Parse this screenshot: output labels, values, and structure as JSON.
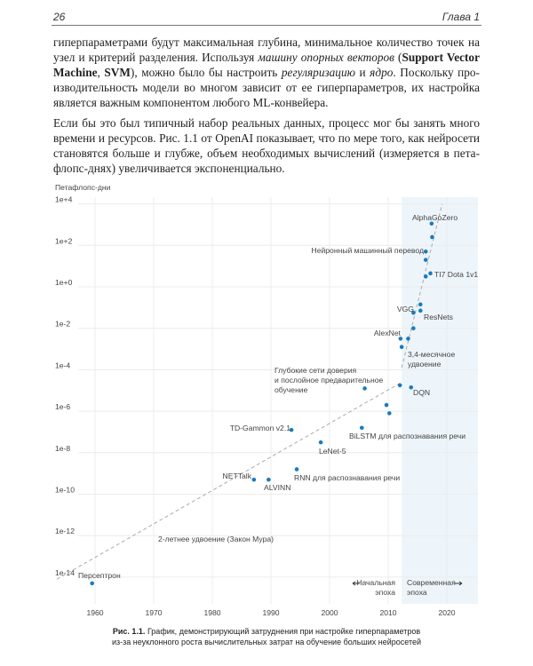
{
  "header": {
    "page_number": "26",
    "chapter": "Глава 1"
  },
  "body": {
    "lines": [
      [
        [
          "гиперпараметрами будут максимальная глубина, минимальное количество точек на",
          ""
        ]
      ],
      [
        [
          "узел и критерий разделения. Используя ",
          ""
        ],
        [
          "машину опорных векторов",
          "i"
        ],
        [
          " (",
          ""
        ],
        [
          "Support Vector",
          "b"
        ]
      ],
      [
        [
          "Machine",
          "b"
        ],
        [
          ", ",
          ""
        ],
        [
          "SVM",
          "b"
        ],
        [
          "), можно было бы настроить ",
          ""
        ],
        [
          "регуляризацию",
          "i"
        ],
        [
          " и ",
          ""
        ],
        [
          "ядро",
          "i"
        ],
        [
          ". Поскольку про-",
          ""
        ]
      ],
      [
        [
          "изводительность модели во многом зависит от ее гиперпараметров, их настройка",
          ""
        ]
      ],
      [
        [
          "является важным компонентом любого ML-конвейера.",
          ""
        ]
      ],
      [
        [
          "Если бы это был типичный набор реальных данных, процесс мог бы занять много",
          ""
        ]
      ],
      [
        [
          "времени и ресурсов. Рис. 1.1 от OpenAI показывает, что по мере того, как нейросети",
          ""
        ]
      ],
      [
        [
          "становятся больше и глубже, объем необходимых вычислений (измеряется в пета-",
          ""
        ]
      ],
      [
        [
          "флопс-днях) увеличивается экспоненциально.",
          ""
        ]
      ]
    ]
  },
  "chart_data": {
    "type": "scatter",
    "ylabel": "Петафлопс-дни",
    "xlabel": "",
    "y_scale": "log10",
    "xlim": [
      1955,
      2026
    ],
    "ylim_exp": [
      -14.8,
      4.3
    ],
    "x_ticks": [
      "1960",
      "1970",
      "1980",
      "1990",
      "2000",
      "2010",
      "2020"
    ],
    "y_ticks": [
      "1e+4",
      "1e+2",
      "1e+0",
      "1e-2",
      "1e-4",
      "1e-6",
      "1e-8",
      "1e-10",
      "1e-12",
      "1e-14"
    ],
    "grid": true,
    "point_color": "#1a7bbf",
    "shade_color": "#eef5fa",
    "modern_era_start": 2012.3,
    "points": [
      {
        "year": 1959.5,
        "log10": -14.3,
        "label": "Персептрон"
      },
      {
        "year": 1987.1,
        "log10": -9.3,
        "label": "NETTalk"
      },
      {
        "year": 1989.6,
        "log10": -9.3,
        "label": "ALVINN"
      },
      {
        "year": 1994.4,
        "log10": -8.8,
        "label": "RNN для распознавания речи"
      },
      {
        "year": 1998.5,
        "log10": -7.5,
        "label": "LeNet-5"
      },
      {
        "year": 1993.5,
        "log10": -6.9,
        "label": "TD-Gammon v2.1"
      },
      {
        "year": 2005.5,
        "log10": -6.8,
        "label": "BiLSTM для распознавания речи"
      },
      {
        "year": 2009.7,
        "log10": -5.7,
        "label": ""
      },
      {
        "year": 2010.2,
        "log10": -6.1,
        "label": ""
      },
      {
        "year": 2006.0,
        "log10": -4.9,
        "label": "Глубокие сети доверия|и послойное предварительное|обучение"
      },
      {
        "year": 2012.0,
        "log10": -4.75,
        "label": ""
      },
      {
        "year": 2013.9,
        "log10": -4.85,
        "label": "DQN"
      },
      {
        "year": 2012.3,
        "log10": -2.9,
        "label": ""
      },
      {
        "year": 2012.1,
        "log10": -2.5,
        "label": "AlexNet"
      },
      {
        "year": 2013.4,
        "log10": -2.5,
        "label": ""
      },
      {
        "year": 2014.3,
        "log10": -2.0,
        "label": ""
      },
      {
        "year": 2014.3,
        "log10": -1.25,
        "label": "VGG"
      },
      {
        "year": 2015.5,
        "log10": -1.15,
        "label": "ResNets"
      },
      {
        "year": 2015.5,
        "log10": -0.85,
        "label": ""
      },
      {
        "year": 2016.4,
        "log10": 0.5,
        "label": ""
      },
      {
        "year": 2017.2,
        "log10": 0.65,
        "label": "TI7 Dota 1v1"
      },
      {
        "year": 2016.4,
        "log10": 1.3,
        "label": ""
      },
      {
        "year": 2016.4,
        "log10": 1.7,
        "label": "Нейронный машинный перевод"
      },
      {
        "year": 2017.5,
        "log10": 2.4,
        "label": ""
      },
      {
        "year": 2017.4,
        "log10": 3.05,
        "label": "AlphaGoZero"
      }
    ],
    "trends": [
      {
        "label": "2-летнее удвоение (Закон Мура)",
        "from": [
          1953.5,
          -14.1
        ],
        "to": [
          2012.3,
          -4.6
        ]
      },
      {
        "label": "3,4-месячное удвоение",
        "from": [
          2012.3,
          -3.9
        ],
        "to": [
          2019.2,
          4.0
        ]
      }
    ],
    "annotations": {
      "early_era": "Начальная|эпоха",
      "modern_era": "Современная|эпоха"
    },
    "caption_bold": "Рис. 1.1.",
    "caption_text": " График, демонстрирующий затруднения при настройке гиперпараметров",
    "caption_text2": "из-за неуклонного роста вычислительных затрат на обучение больших нейросетей"
  }
}
